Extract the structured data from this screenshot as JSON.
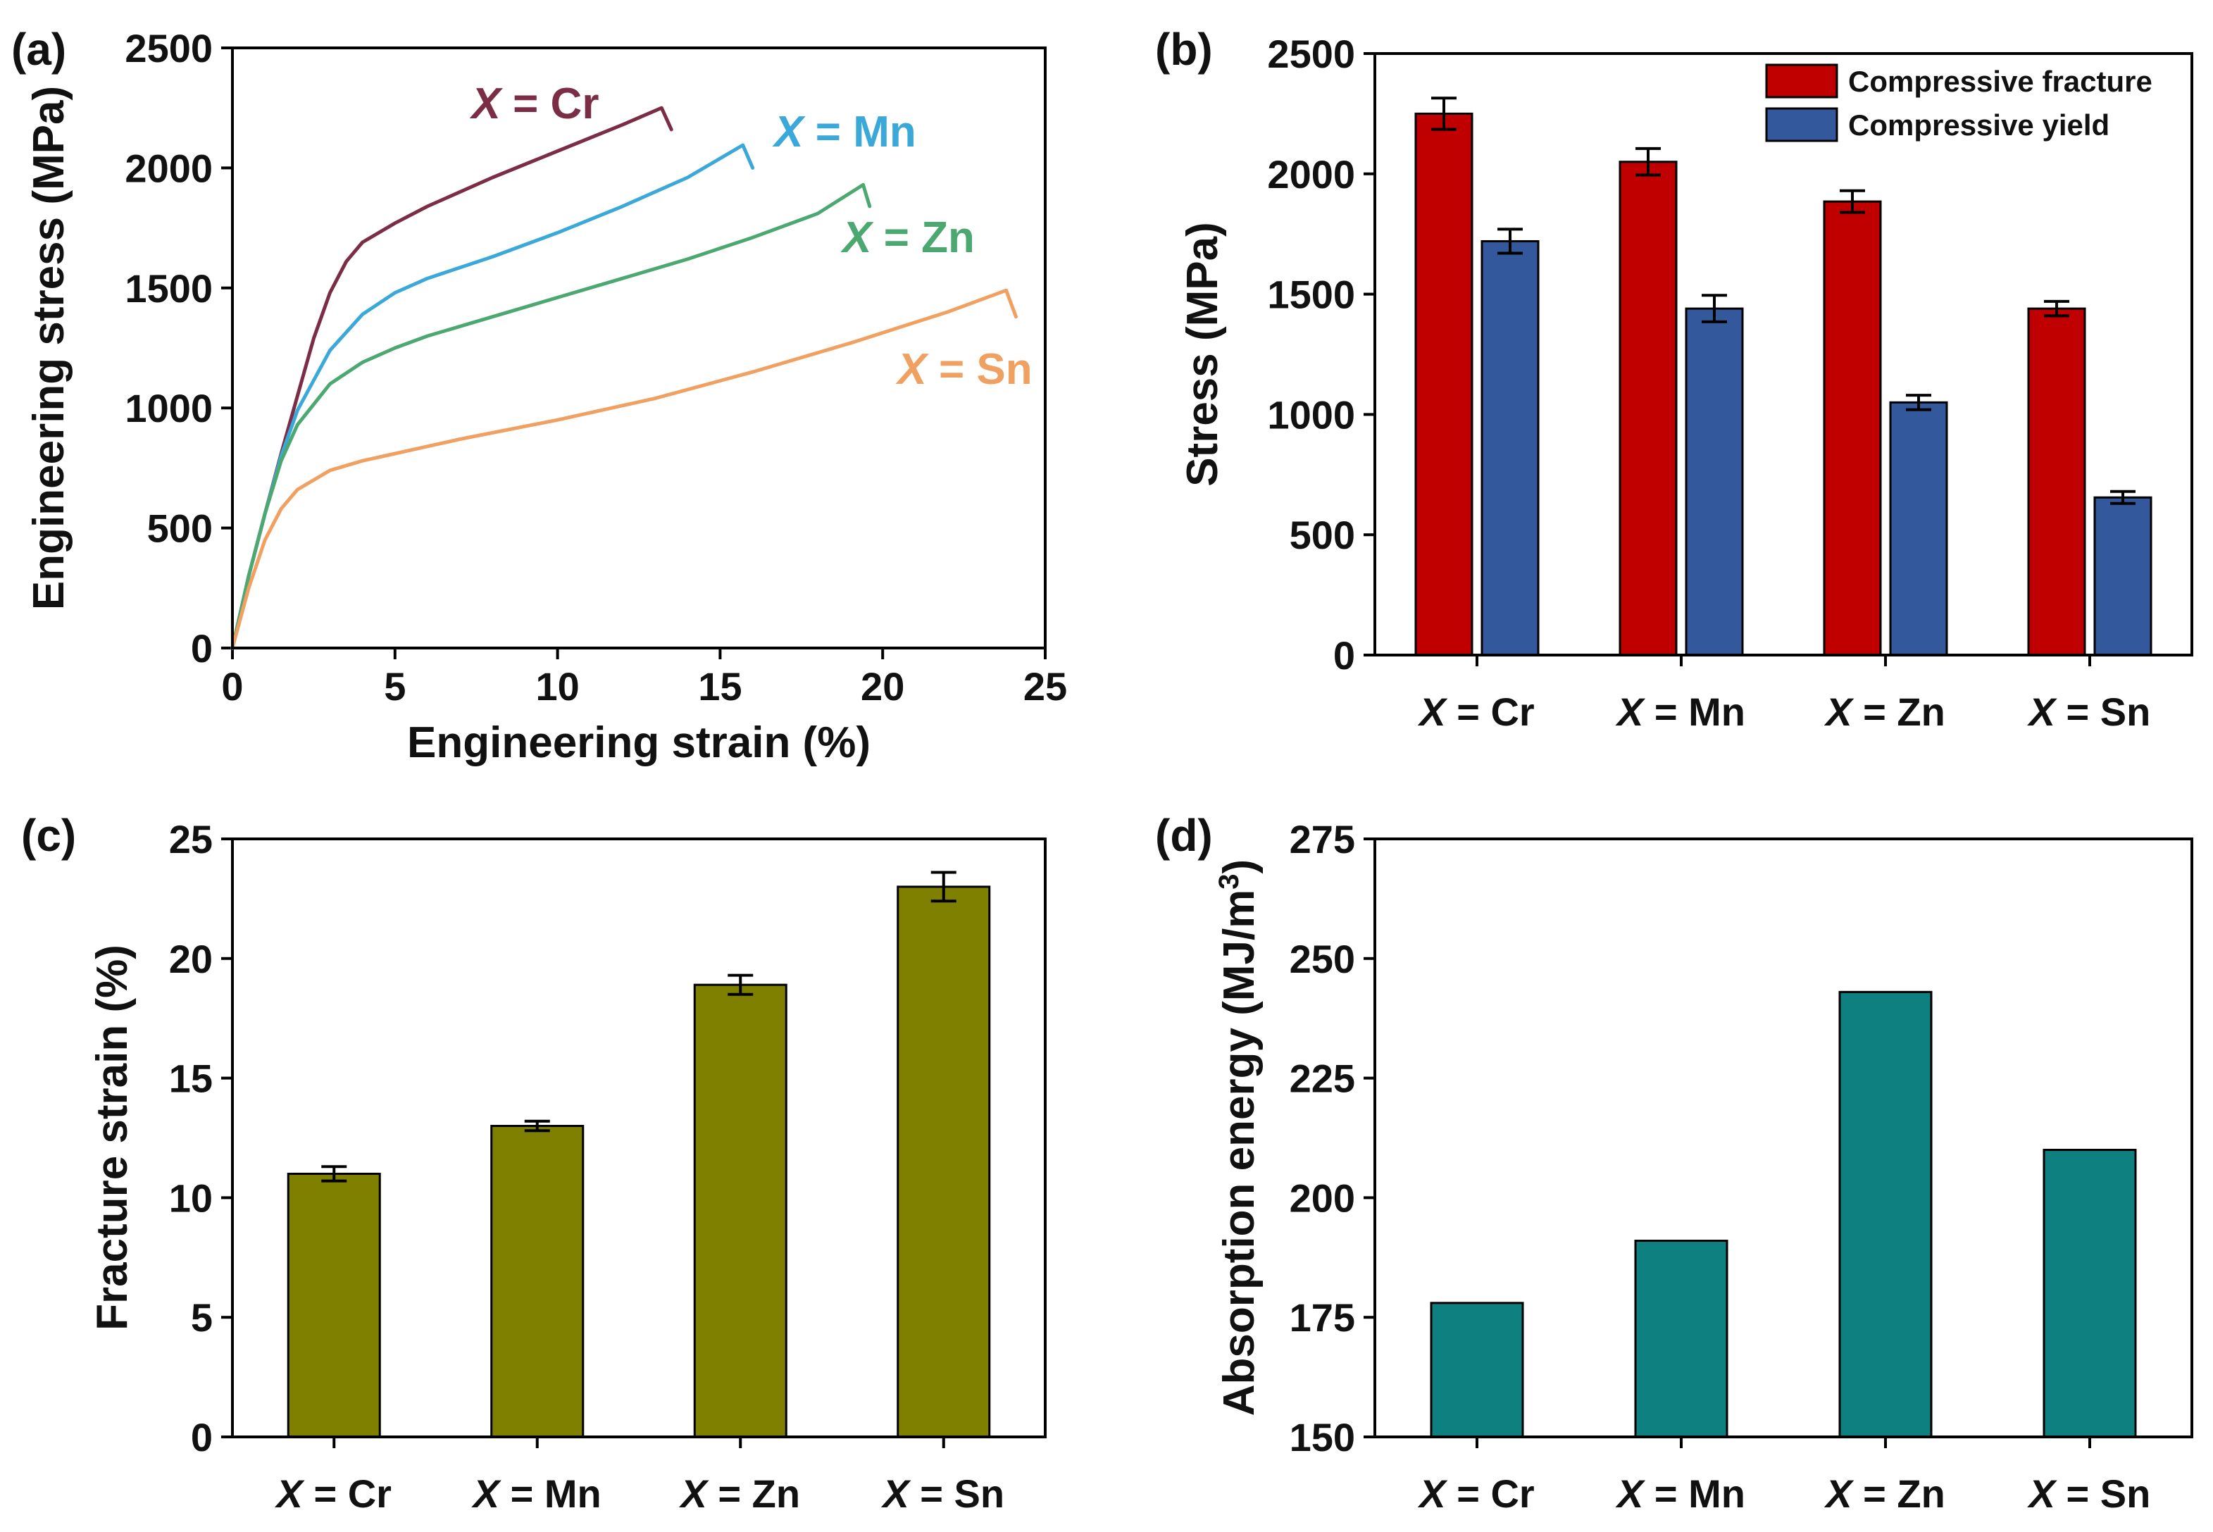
{
  "chart_data": [
    {
      "panel": "(a)",
      "type": "line",
      "xlabel": "Engineering strain (%)",
      "ylabel": "Engineering stress (MPa)",
      "xlim": [
        0,
        25
      ],
      "ylim": [
        0,
        2500
      ],
      "xticks": [
        0,
        5,
        10,
        15,
        20,
        25
      ],
      "yticks": [
        0,
        500,
        1000,
        1500,
        2000,
        2500
      ],
      "series": [
        {
          "name": "X = Cr",
          "prefix": "X",
          "suffix": " = Cr",
          "color": "#7b2d45",
          "x": [
            0,
            0.5,
            1,
            1.5,
            2,
            2.5,
            3,
            3.5,
            4,
            5,
            6,
            8,
            10,
            12,
            13.2,
            13.5
          ],
          "y": [
            0,
            300,
            560,
            810,
            1050,
            1290,
            1480,
            1610,
            1690,
            1770,
            1840,
            1960,
            2070,
            2180,
            2250,
            2160
          ]
        },
        {
          "name": "X = Mn",
          "prefix": "X",
          "suffix": " = Mn",
          "color": "#3aa8d8",
          "x": [
            0,
            0.5,
            1,
            1.5,
            2,
            3,
            4,
            5,
            6,
            8,
            10,
            12,
            14,
            15.7,
            16
          ],
          "y": [
            0,
            300,
            560,
            800,
            990,
            1240,
            1390,
            1480,
            1540,
            1630,
            1730,
            1840,
            1960,
            2095,
            2000
          ]
        },
        {
          "name": "X = Zn",
          "prefix": "X",
          "suffix": " = Zn",
          "color": "#4aa870",
          "x": [
            0,
            0.5,
            1,
            1.5,
            2,
            3,
            4,
            5,
            6,
            8,
            10,
            12,
            14,
            16,
            18,
            19.4,
            19.6
          ],
          "y": [
            0,
            300,
            560,
            780,
            930,
            1100,
            1190,
            1250,
            1300,
            1380,
            1460,
            1540,
            1620,
            1710,
            1810,
            1930,
            1840
          ]
        },
        {
          "name": "X = Sn",
          "prefix": "X",
          "suffix": " = Sn",
          "color": "#f0a060",
          "x": [
            0,
            0.5,
            1,
            1.5,
            2,
            3,
            4,
            5,
            7,
            10,
            13,
            16,
            19,
            22,
            23.8,
            24.1
          ],
          "y": [
            0,
            250,
            450,
            580,
            660,
            740,
            780,
            810,
            870,
            950,
            1040,
            1150,
            1270,
            1400,
            1490,
            1380
          ]
        }
      ]
    },
    {
      "panel": "(b)",
      "type": "bar",
      "ylabel": "Stress (MPa)",
      "ylim": [
        0,
        2500
      ],
      "yticks": [
        0,
        500,
        1000,
        1500,
        2000,
        2500
      ],
      "categories": [
        {
          "prefix": "X",
          "suffix": " = Cr"
        },
        {
          "prefix": "X",
          "suffix": " = Mn"
        },
        {
          "prefix": "X",
          "suffix": " = Zn"
        },
        {
          "prefix": "X",
          "suffix": " = Sn"
        }
      ],
      "legend_position": "top-right",
      "series": [
        {
          "name": "Compressive fracture",
          "color": "#c00000",
          "values": [
            2250,
            2050,
            1885,
            1440
          ],
          "errors": [
            65,
            55,
            45,
            30
          ]
        },
        {
          "name": "Compressive yield",
          "color": "#34589c",
          "values": [
            1720,
            1440,
            1050,
            655
          ],
          "errors": [
            50,
            55,
            30,
            25
          ]
        }
      ]
    },
    {
      "panel": "(c)",
      "type": "bar",
      "ylabel": "Fracture strain (%)",
      "ylim": [
        0,
        25
      ],
      "yticks": [
        0,
        5,
        10,
        15,
        20,
        25
      ],
      "categories": [
        {
          "prefix": "X",
          "suffix": " = Cr"
        },
        {
          "prefix": "X",
          "suffix": " = Mn"
        },
        {
          "prefix": "X",
          "suffix": " = Zn"
        },
        {
          "prefix": "X",
          "suffix": " = Sn"
        }
      ],
      "series": [
        {
          "name": "Fracture strain",
          "color": "#808000",
          "values": [
            11.0,
            13.0,
            18.9,
            23.0
          ],
          "errors": [
            0.3,
            0.2,
            0.4,
            0.6
          ]
        }
      ]
    },
    {
      "panel": "(d)",
      "type": "bar",
      "ylabel": "Absorption energy (MJ/m",
      "ylabel_sup": "3",
      "ylabel_end": ")",
      "ylim": [
        150,
        275
      ],
      "yticks": [
        150,
        175,
        200,
        225,
        250,
        275
      ],
      "categories": [
        {
          "prefix": "X",
          "suffix": " = Cr"
        },
        {
          "prefix": "X",
          "suffix": " = Mn"
        },
        {
          "prefix": "X",
          "suffix": " = Zn"
        },
        {
          "prefix": "X",
          "suffix": " = Sn"
        }
      ],
      "series": [
        {
          "name": "Absorption energy",
          "color": "#0f8080",
          "values": [
            178,
            191,
            243,
            210
          ]
        }
      ]
    }
  ]
}
